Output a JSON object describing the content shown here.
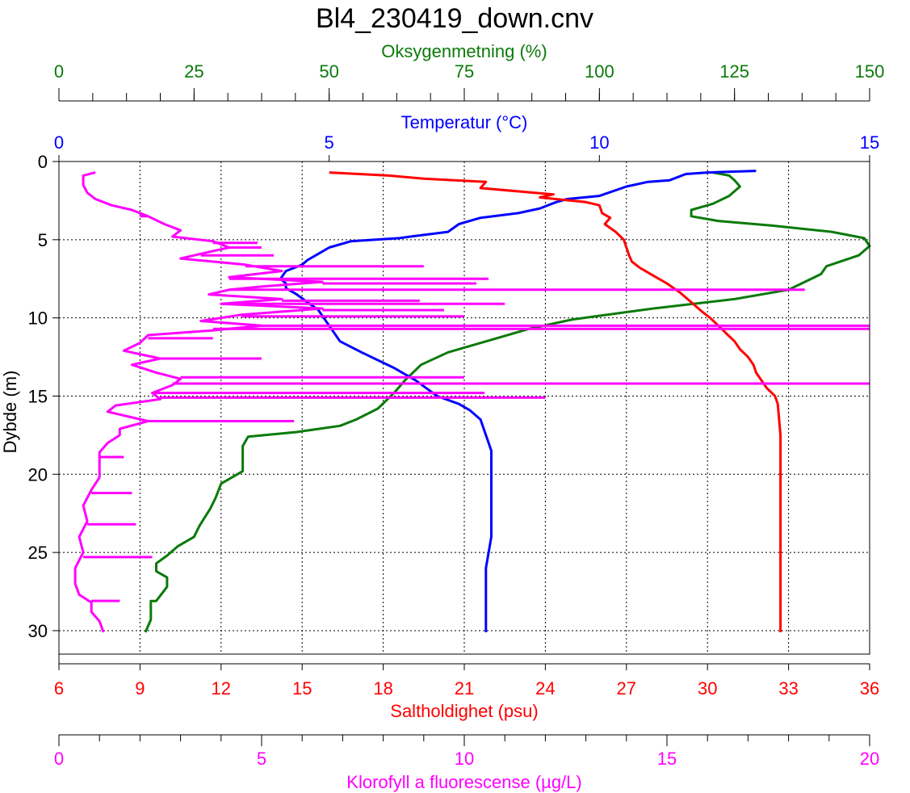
{
  "chart_data": {
    "type": "line",
    "title": "Bl4_230419_down.cnv",
    "y_axis": {
      "label": "Dybde (m)",
      "range": [
        0,
        31.5
      ],
      "inverted": true,
      "ticks": [
        0,
        5,
        10,
        15,
        20,
        25,
        30
      ],
      "color": "#000000"
    },
    "grid": true,
    "grid_style": "dotted",
    "axes": {
      "oxygen": {
        "label": "Oksygenmetning (%)",
        "position": "top-outer",
        "range": [
          0,
          150
        ],
        "ticks": [
          0,
          25,
          50,
          75,
          100,
          125,
          150
        ],
        "minor_step": 6.25,
        "color": "#0a7a0a"
      },
      "temperature": {
        "label": "Temperatur (°C)",
        "position": "top-inner",
        "range": [
          0,
          15
        ],
        "ticks": [
          0,
          5,
          10,
          15
        ],
        "color": "#0000ff"
      },
      "salinity": {
        "label": "Saltholdighet (psu)",
        "position": "bottom-inner",
        "range": [
          6,
          36
        ],
        "ticks": [
          6,
          9,
          12,
          15,
          18,
          21,
          24,
          27,
          30,
          33,
          36
        ],
        "color": "#ff0000"
      },
      "chlorophyll": {
        "label": "Klorofyll a fluorescense (µg/L)",
        "position": "bottom-outer",
        "range": [
          0,
          20
        ],
        "ticks": [
          0,
          5,
          10,
          15,
          20
        ],
        "minor_step": 1,
        "color": "#ff00ff"
      }
    },
    "series": [
      {
        "key": "oxygen",
        "color": "#0a7a0a",
        "points": [
          [
            121,
            0.7
          ],
          [
            124,
            0.9
          ],
          [
            125,
            1.2
          ],
          [
            126,
            1.6
          ],
          [
            124,
            2.2
          ],
          [
            121,
            2.7
          ],
          [
            117,
            3.1
          ],
          [
            117,
            3.5
          ],
          [
            122,
            3.8
          ],
          [
            132,
            4.1
          ],
          [
            143,
            4.5
          ],
          [
            149,
            4.9
          ],
          [
            150,
            5.4
          ],
          [
            148,
            6.0
          ],
          [
            142,
            6.7
          ],
          [
            141,
            7.2
          ],
          [
            138,
            7.7
          ],
          [
            135,
            8.2
          ],
          [
            125,
            8.8
          ],
          [
            110,
            9.4
          ],
          [
            95,
            10.1
          ],
          [
            87,
            10.7
          ],
          [
            80,
            11.4
          ],
          [
            72,
            12.2
          ],
          [
            67,
            13.0
          ],
          [
            64,
            14.0
          ],
          [
            62,
            14.8
          ],
          [
            59,
            15.8
          ],
          [
            55,
            16.5
          ],
          [
            52,
            16.9
          ],
          [
            44,
            17.3
          ],
          [
            35,
            17.6
          ],
          [
            34,
            18.2
          ],
          [
            34,
            19.8
          ],
          [
            30,
            20.6
          ],
          [
            29,
            21.5
          ],
          [
            28,
            22.2
          ],
          [
            26,
            23.3
          ],
          [
            25,
            24.0
          ],
          [
            22,
            24.6
          ],
          [
            20,
            25.2
          ],
          [
            18,
            25.7
          ],
          [
            18,
            26.2
          ],
          [
            20,
            26.6
          ],
          [
            20,
            27.2
          ],
          [
            18,
            28.1
          ],
          [
            17,
            28.1
          ],
          [
            17,
            28.5
          ],
          [
            17,
            29.3
          ],
          [
            16,
            30.1
          ]
        ]
      },
      {
        "key": "temperature",
        "color": "#0000ff",
        "points": [
          [
            12.9,
            0.6
          ],
          [
            12.0,
            0.7
          ],
          [
            11.6,
            0.8
          ],
          [
            11.3,
            1.2
          ],
          [
            10.9,
            1.3
          ],
          [
            10.5,
            1.6
          ],
          [
            10.0,
            2.2
          ],
          [
            9.4,
            2.4
          ],
          [
            9.2,
            2.6
          ],
          [
            8.9,
            3.0
          ],
          [
            8.5,
            3.3
          ],
          [
            7.8,
            3.6
          ],
          [
            7.4,
            4.0
          ],
          [
            7.2,
            4.5
          ],
          [
            6.5,
            4.8
          ],
          [
            6.3,
            4.9
          ],
          [
            5.4,
            5.1
          ],
          [
            5.0,
            5.5
          ],
          [
            4.8,
            5.9
          ],
          [
            4.6,
            6.3
          ],
          [
            4.5,
            6.6
          ],
          [
            4.2,
            7.0
          ],
          [
            4.1,
            7.5
          ],
          [
            4.2,
            7.8
          ],
          [
            4.2,
            8.1
          ],
          [
            4.4,
            8.5
          ],
          [
            4.8,
            9.5
          ],
          [
            5.0,
            10.5
          ],
          [
            5.2,
            11.5
          ],
          [
            5.6,
            12.2
          ],
          [
            6.2,
            13.2
          ],
          [
            6.6,
            14.0
          ],
          [
            6.8,
            14.5
          ],
          [
            7.0,
            15.0
          ],
          [
            7.4,
            15.5
          ],
          [
            7.6,
            15.9
          ],
          [
            7.8,
            16.5
          ],
          [
            7.9,
            17.5
          ],
          [
            8.0,
            18.5
          ],
          [
            8.0,
            20.0
          ],
          [
            8.0,
            22.0
          ],
          [
            8.0,
            24.0
          ],
          [
            7.9,
            26.0
          ],
          [
            7.9,
            28.0
          ],
          [
            7.9,
            30.1
          ]
        ]
      },
      {
        "key": "salinity",
        "color": "#ff0000",
        "points": [
          [
            16.0,
            0.7
          ],
          [
            18.2,
            0.9
          ],
          [
            19.5,
            1.1
          ],
          [
            21.8,
            1.3
          ],
          [
            21.6,
            1.7
          ],
          [
            24.3,
            2.1
          ],
          [
            23.8,
            2.3
          ],
          [
            25.5,
            2.6
          ],
          [
            26.0,
            2.8
          ],
          [
            26.1,
            3.3
          ],
          [
            26.4,
            3.6
          ],
          [
            26.2,
            4.0
          ],
          [
            26.6,
            4.5
          ],
          [
            26.9,
            5.0
          ],
          [
            27.0,
            5.5
          ],
          [
            27.1,
            6.0
          ],
          [
            27.2,
            6.4
          ],
          [
            27.5,
            6.8
          ],
          [
            28.0,
            7.3
          ],
          [
            28.5,
            7.8
          ],
          [
            29.0,
            8.4
          ],
          [
            29.4,
            9.0
          ],
          [
            29.8,
            9.6
          ],
          [
            30.1,
            10.0
          ],
          [
            30.4,
            10.5
          ],
          [
            30.7,
            11.0
          ],
          [
            31.0,
            11.5
          ],
          [
            31.2,
            12.0
          ],
          [
            31.5,
            12.5
          ],
          [
            31.7,
            13.0
          ],
          [
            31.8,
            13.5
          ],
          [
            32.0,
            14.0
          ],
          [
            32.2,
            14.5
          ],
          [
            32.5,
            15.0
          ],
          [
            32.6,
            15.5
          ],
          [
            32.65,
            16.5
          ],
          [
            32.7,
            17.5
          ],
          [
            32.7,
            19.0
          ],
          [
            32.7,
            21.0
          ],
          [
            32.7,
            23.0
          ],
          [
            32.7,
            25.0
          ],
          [
            32.7,
            27.0
          ],
          [
            32.7,
            30.1
          ]
        ]
      },
      {
        "key": "chlorophyll",
        "color": "#ff00ff",
        "points": [
          [
            0.9,
            0.7
          ],
          [
            0.6,
            0.9
          ],
          [
            0.6,
            1.5
          ],
          [
            0.7,
            2.0
          ],
          [
            0.9,
            2.4
          ],
          [
            1.3,
            2.8
          ],
          [
            1.8,
            3.1
          ],
          [
            2.2,
            3.5
          ],
          [
            2.6,
            4.0
          ],
          [
            3.0,
            4.4
          ],
          [
            2.8,
            4.8
          ],
          [
            3.8,
            5.1
          ],
          [
            4.2,
            5.5
          ],
          [
            3.5,
            5.9
          ],
          [
            3.0,
            6.2
          ],
          [
            4.6,
            6.6
          ],
          [
            5.5,
            7.0
          ],
          [
            4.2,
            7.4
          ],
          [
            6.5,
            7.7
          ],
          [
            5.0,
            8.0
          ],
          [
            4.2,
            8.2
          ],
          [
            3.7,
            8.5
          ],
          [
            5.5,
            8.8
          ],
          [
            4.0,
            9.1
          ],
          [
            6.5,
            9.4
          ],
          [
            4.5,
            9.8
          ],
          [
            3.5,
            10.2
          ],
          [
            5.0,
            10.5
          ],
          [
            3.8,
            10.8
          ],
          [
            2.2,
            11.1
          ],
          [
            2.0,
            11.6
          ],
          [
            1.6,
            12.1
          ],
          [
            2.5,
            12.6
          ],
          [
            1.8,
            13.0
          ],
          [
            2.4,
            13.5
          ],
          [
            3.0,
            13.9
          ],
          [
            2.8,
            14.3
          ],
          [
            2.3,
            14.8
          ],
          [
            2.5,
            15.2
          ],
          [
            1.4,
            15.6
          ],
          [
            1.2,
            16.0
          ],
          [
            2.2,
            16.6
          ],
          [
            1.5,
            17.1
          ],
          [
            1.5,
            17.5
          ],
          [
            1.2,
            18.0
          ],
          [
            1.0,
            18.6
          ],
          [
            1.0,
            19.4
          ],
          [
            1.0,
            20.2
          ],
          [
            0.8,
            21.0
          ],
          [
            0.6,
            22.0
          ],
          [
            0.7,
            23.0
          ],
          [
            0.5,
            24.0
          ],
          [
            0.6,
            25.0
          ],
          [
            0.4,
            26.0
          ],
          [
            0.4,
            27.0
          ],
          [
            0.5,
            27.7
          ],
          [
            0.8,
            28.2
          ],
          [
            0.8,
            28.8
          ],
          [
            1.0,
            29.4
          ],
          [
            1.1,
            30.1
          ]
        ],
        "spikes": [
          [
            2.0,
            3.5
          ],
          [
            4.9,
            5.2
          ],
          [
            5.0,
            5.5
          ],
          [
            5.3,
            6.0
          ],
          [
            9.0,
            6.7
          ],
          [
            10.6,
            7.5
          ],
          [
            10.3,
            7.8
          ],
          [
            18.4,
            8.2
          ],
          [
            8.9,
            8.9
          ],
          [
            11.0,
            9.1
          ],
          [
            9.5,
            9.5
          ],
          [
            10.0,
            9.9
          ],
          [
            20.0,
            10.5
          ],
          [
            20.0,
            10.7
          ],
          [
            3.8,
            11.3
          ],
          [
            5.0,
            12.6
          ],
          [
            10.0,
            13.8
          ],
          [
            20.0,
            14.2
          ],
          [
            10.5,
            14.8
          ],
          [
            12.0,
            15.1
          ],
          [
            5.8,
            16.6
          ],
          [
            1.6,
            18.9
          ],
          [
            1.8,
            21.2
          ],
          [
            1.9,
            23.2
          ],
          [
            2.3,
            25.3
          ],
          [
            1.5,
            28.1
          ]
        ]
      }
    ]
  }
}
